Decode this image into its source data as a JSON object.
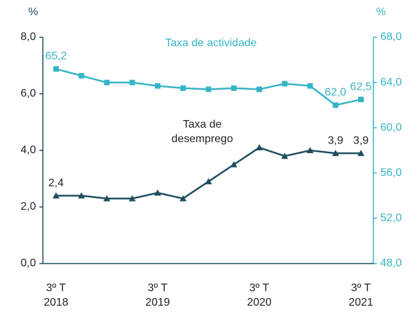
{
  "chart_data": {
    "type": "line",
    "y_unit": "%",
    "y2_unit": "%",
    "categories": [
      "3º T 2018",
      null,
      null,
      null,
      "3º T 2019",
      null,
      null,
      null,
      "3º T 2020",
      null,
      null,
      null,
      "3º T 2021"
    ],
    "ylim": [
      0,
      8
    ],
    "yticks": [
      {
        "value": 0,
        "label": "0,0"
      },
      {
        "value": 2,
        "label": "2,0"
      },
      {
        "value": 4,
        "label": "4,0"
      },
      {
        "value": 6,
        "label": "6,0"
      },
      {
        "value": 8,
        "label": "8,0"
      }
    ],
    "y2lim": [
      48,
      68
    ],
    "y2ticks": [
      {
        "value": 48,
        "label": "48,0"
      },
      {
        "value": 52,
        "label": "52,0"
      },
      {
        "value": 56,
        "label": "56,0"
      },
      {
        "value": 60,
        "label": "60,0"
      },
      {
        "value": 64,
        "label": "64,0"
      },
      {
        "value": 68,
        "label": "68,0"
      }
    ],
    "series": [
      {
        "name": "Taxa de desemprego",
        "color": "#1d4e5e",
        "marker": "triangle",
        "values": [
          2.4,
          2.4,
          2.3,
          2.3,
          2.5,
          2.3,
          2.9,
          3.5,
          4.1,
          3.8,
          4.0,
          3.9,
          3.9
        ],
        "value_labels": [
          "2,4",
          null,
          null,
          null,
          null,
          null,
          null,
          null,
          null,
          null,
          null,
          "3,9",
          "3,9"
        ]
      },
      {
        "name": "Taxa de actividade",
        "color": "#35b4c4",
        "marker": "square",
        "axis": "y2",
        "values": [
          65.2,
          64.6,
          64.0,
          64.0,
          63.7,
          63.5,
          63.4,
          63.5,
          63.4,
          63.9,
          63.7,
          62.0,
          62.5
        ],
        "value_labels": [
          "65,2",
          null,
          null,
          null,
          null,
          null,
          null,
          null,
          null,
          null,
          null,
          "62,0",
          "62,5"
        ]
      }
    ]
  }
}
